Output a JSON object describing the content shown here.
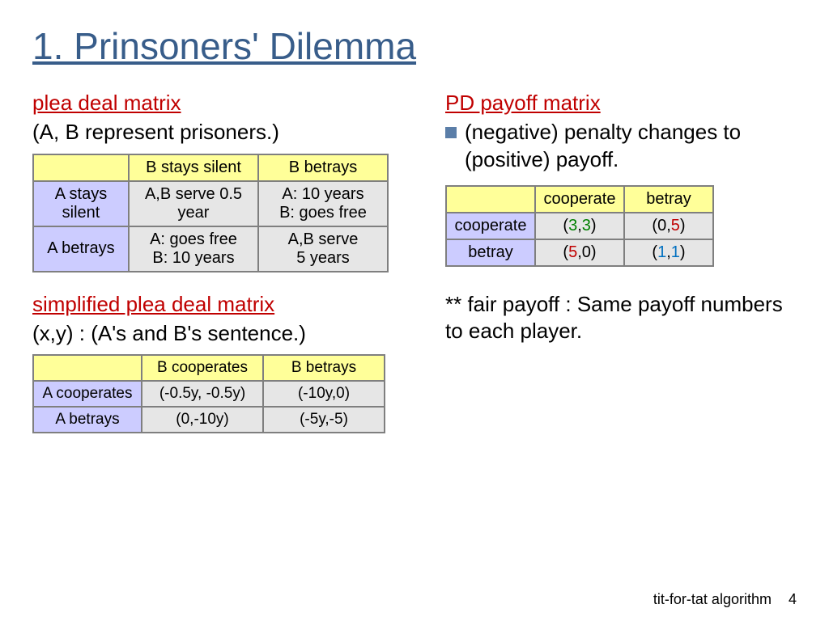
{
  "title": "1. Prinsoners' Dilemma",
  "left": {
    "section1_heading": "plea deal matrix",
    "section1_sub": "(A, B represent prisoners.)",
    "table1": {
      "col_headers": [
        "B stays silent",
        "B betrays"
      ],
      "row_headers": [
        "A stays silent",
        "A betrays"
      ],
      "cells": [
        [
          "A,B serve 0.5 year",
          "A: 10 years\nB: goes free"
        ],
        [
          "A: goes free\nB: 10 years",
          "A,B serve\n5 years"
        ]
      ]
    },
    "section2_heading": "simplified plea deal matrix",
    "section2_sub": "(x,y) : (A's and B's sentence.)",
    "table2": {
      "col_headers": [
        "B cooperates",
        "B betrays"
      ],
      "row_headers": [
        "A cooperates",
        "A betrays"
      ],
      "cells": [
        [
          "(-0.5y, -0.5y)",
          "(-10y,0)"
        ],
        [
          "(0,-10y)",
          "(-5y,-5)"
        ]
      ]
    }
  },
  "right": {
    "section_heading": "PD payoff matrix",
    "bullet": "(negative) penalty changes to (positive) payoff.",
    "table3": {
      "col_headers": [
        "cooperate",
        "betray"
      ],
      "row_headers": [
        "cooperate",
        "betray"
      ],
      "cells": [
        [
          {
            "open": "(",
            "a": "3",
            "comma": ",",
            "b": "3",
            "close": ")",
            "ac": "g",
            "bc": "g"
          },
          {
            "open": "(",
            "a": "0",
            "comma": ",",
            "b": "5",
            "close": ")",
            "ac": "k",
            "bc": "r"
          }
        ],
        [
          {
            "open": "(",
            "a": "5",
            "comma": ",",
            "b": "0",
            "close": ")",
            "ac": "r",
            "bc": "k"
          },
          {
            "open": "(",
            "a": "1",
            "comma": ",",
            "b": "1",
            "close": ")",
            "ac": "b",
            "bc": "b"
          }
        ]
      ]
    },
    "footnote": "** fair payoff : Same payoff numbers to each player."
  },
  "footer": {
    "text": "tit-for-tat algorithm",
    "page": "4"
  },
  "colors": {
    "title": "#385d8a",
    "heading_red": "#c00000",
    "header_yellow": "#ffff99",
    "header_blue": "#ccccff",
    "cell_grey": "#e6e6e6",
    "border": "#7f7f7f",
    "green": "#008000",
    "red": "#c00000",
    "blue": "#0070c0"
  }
}
